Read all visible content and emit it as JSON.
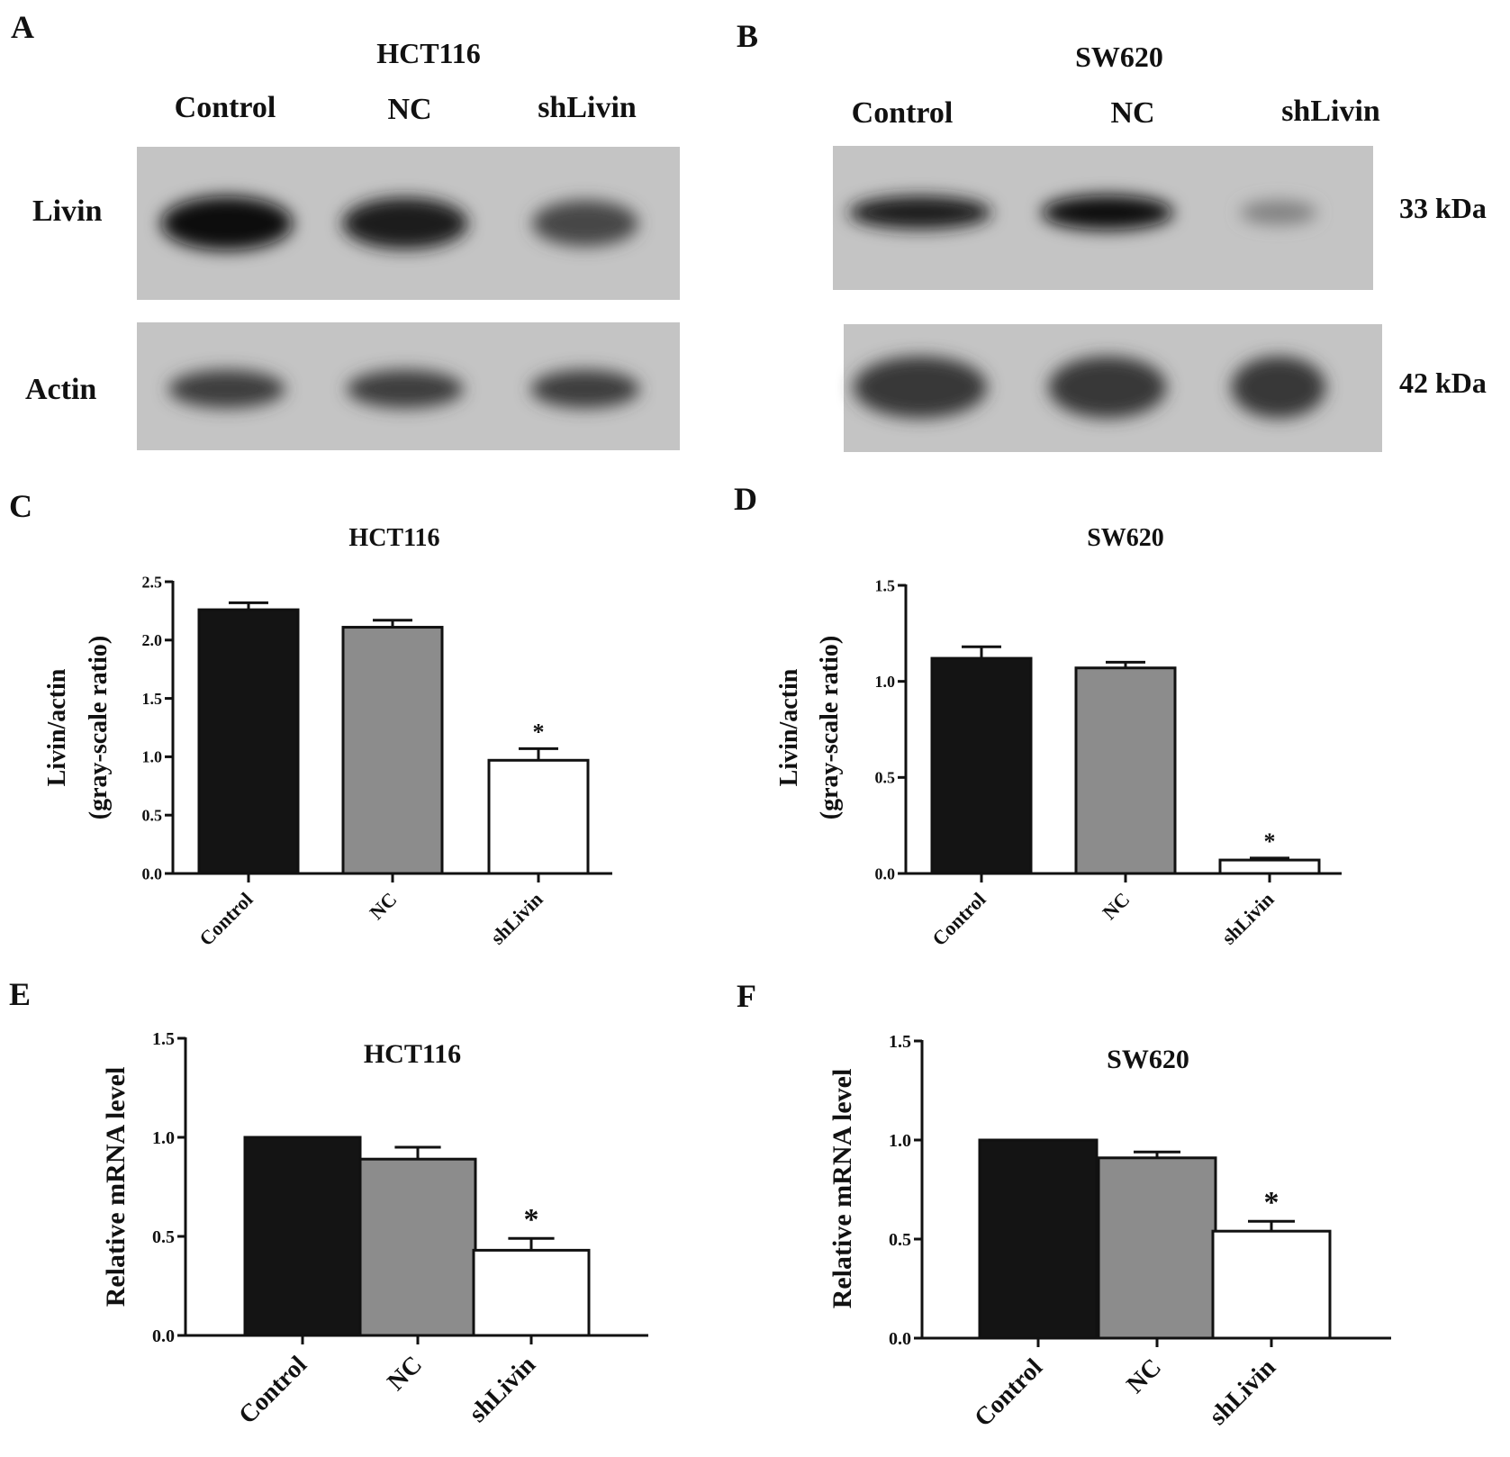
{
  "blots": [
    {
      "panel": "A",
      "cell_line": "HCT116",
      "lanes": [
        "Control",
        "NC",
        "shLivin"
      ],
      "rows": [
        {
          "protein": "Livin",
          "mw": "",
          "band_intensity": [
            0.95,
            0.85,
            0.65
          ]
        },
        {
          "protein": "Actin",
          "mw": "",
          "band_intensity": [
            0.7,
            0.7,
            0.7
          ]
        }
      ]
    },
    {
      "panel": "B",
      "cell_line": "SW620",
      "lanes": [
        "Control",
        "NC",
        "shLivin"
      ],
      "rows": [
        {
          "protein": "",
          "mw": "33 kDa",
          "band_intensity": [
            0.85,
            0.95,
            0.35
          ]
        },
        {
          "protein": "",
          "mw": "42 kDa",
          "band_intensity": [
            0.72,
            0.72,
            0.72
          ]
        }
      ]
    }
  ],
  "chart_data": [
    {
      "panel": "C",
      "type": "bar",
      "title": "HCT116",
      "ylabel": [
        "Livin/actin",
        "(gray-scale ratio)"
      ],
      "categories": [
        "Control",
        "NC",
        "shLivin"
      ],
      "values": [
        2.26,
        2.11,
        0.97
      ],
      "errors": [
        0.06,
        0.06,
        0.1
      ],
      "significance": [
        "",
        "",
        "*"
      ],
      "bar_colors": [
        "#141414",
        "#8c8c8c",
        "#ffffff"
      ],
      "ylim": [
        0,
        2.5
      ],
      "yticks": [
        "0.0",
        "0.5",
        "1.0",
        "1.5",
        "2.0",
        "2.5"
      ],
      "grid": false
    },
    {
      "panel": "D",
      "type": "bar",
      "title": "SW620",
      "ylabel": [
        "Livin/actin",
        "(gray-scale ratio)"
      ],
      "categories": [
        "Control",
        "NC",
        "shLivin"
      ],
      "values": [
        1.12,
        1.07,
        0.07
      ],
      "errors": [
        0.06,
        0.03,
        0.01
      ],
      "significance": [
        "",
        "",
        "*"
      ],
      "bar_colors": [
        "#141414",
        "#8c8c8c",
        "#ffffff"
      ],
      "ylim": [
        0,
        1.5
      ],
      "yticks": [
        "0.0",
        "0.5",
        "1.0",
        "1.5"
      ],
      "grid": false
    },
    {
      "panel": "E",
      "type": "bar",
      "title": "HCT116",
      "ylabel": [
        "Relative mRNA level"
      ],
      "categories": [
        "Control",
        "NC",
        "shLivin"
      ],
      "values": [
        1.0,
        0.89,
        0.43
      ],
      "errors": [
        0.0,
        0.06,
        0.06
      ],
      "significance": [
        "",
        "",
        "*"
      ],
      "bar_colors": [
        "#141414",
        "#8c8c8c",
        "#ffffff"
      ],
      "ylim": [
        0,
        1.5
      ],
      "yticks": [
        "0.0",
        "0.5",
        "1.0",
        "1.5"
      ],
      "grid": false
    },
    {
      "panel": "F",
      "type": "bar",
      "title": "SW620",
      "ylabel": [
        "Relative mRNA level"
      ],
      "categories": [
        "Control",
        "NC",
        "shLivin"
      ],
      "values": [
        1.0,
        0.91,
        0.54
      ],
      "errors": [
        0.0,
        0.03,
        0.05
      ],
      "significance": [
        "",
        "",
        "*"
      ],
      "bar_colors": [
        "#141414",
        "#8c8c8c",
        "#ffffff"
      ],
      "ylim": [
        0,
        1.5
      ],
      "yticks": [
        "0.0",
        "0.5",
        "1.0",
        "1.5"
      ],
      "grid": false
    }
  ]
}
